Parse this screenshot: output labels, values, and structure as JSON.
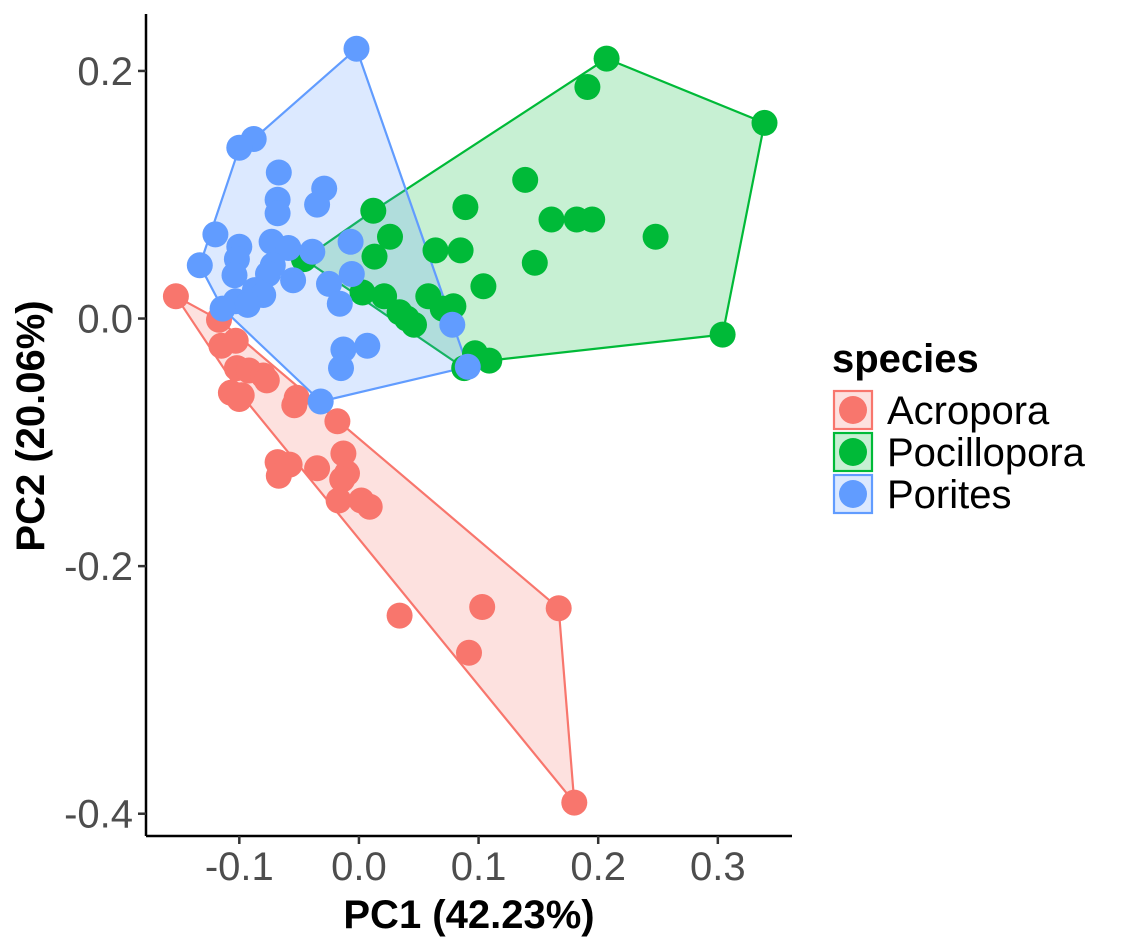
{
  "chart_data": {
    "type": "scatter",
    "title": "",
    "xlabel": "PC1 (42.23%)",
    "ylabel": "PC2 (20.06%)",
    "xlim": [
      -0.178,
      0.362
    ],
    "ylim": [
      -0.418,
      0.246
    ],
    "x_ticks": [
      -0.1,
      0.0,
      0.1,
      0.2,
      0.3
    ],
    "x_tick_labels": [
      "-0.1",
      "0.0",
      "0.1",
      "0.2",
      "0.3"
    ],
    "y_ticks": [
      -0.4,
      -0.2,
      0.0,
      0.2
    ],
    "y_tick_labels": [
      "-0.4",
      "-0.2",
      "0.0",
      "0.2"
    ],
    "grid": false,
    "hulls": true,
    "legend": {
      "title": "species",
      "position": "right",
      "entries": [
        "Acropora",
        "Pocillopora",
        "Porites"
      ]
    },
    "series": [
      {
        "name": "Acropora",
        "color": "#F8766D",
        "points": [
          [
            -0.153,
            0.018
          ],
          [
            -0.117,
            -0.001
          ],
          [
            -0.115,
            -0.022
          ],
          [
            -0.103,
            -0.018
          ],
          [
            -0.102,
            -0.04
          ],
          [
            -0.092,
            -0.042
          ],
          [
            -0.08,
            -0.046
          ],
          [
            -0.077,
            -0.05
          ],
          [
            -0.107,
            -0.06
          ],
          [
            -0.098,
            -0.062
          ],
          [
            -0.1,
            -0.065
          ],
          [
            -0.052,
            -0.064
          ],
          [
            -0.054,
            -0.07
          ],
          [
            -0.018,
            -0.083
          ],
          [
            -0.068,
            -0.116
          ],
          [
            -0.058,
            -0.118
          ],
          [
            -0.067,
            -0.127
          ],
          [
            -0.035,
            -0.121
          ],
          [
            -0.013,
            -0.109
          ],
          [
            -0.01,
            -0.125
          ],
          [
            -0.014,
            -0.13
          ],
          [
            -0.017,
            -0.147
          ],
          [
            0.002,
            -0.147
          ],
          [
            0.009,
            -0.152
          ],
          [
            0.034,
            -0.24
          ],
          [
            0.103,
            -0.233
          ],
          [
            0.167,
            -0.234
          ],
          [
            0.092,
            -0.27
          ],
          [
            0.18,
            -0.391
          ]
        ]
      },
      {
        "name": "Pocillopora",
        "color": "#00BA38",
        "points": [
          [
            0.207,
            0.21
          ],
          [
            0.191,
            0.187
          ],
          [
            0.339,
            0.158
          ],
          [
            0.139,
            0.112
          ],
          [
            0.089,
            0.09
          ],
          [
            0.161,
            0.08
          ],
          [
            0.182,
            0.08
          ],
          [
            0.195,
            0.08
          ],
          [
            0.248,
            0.066
          ],
          [
            0.012,
            0.087
          ],
          [
            0.026,
            0.066
          ],
          [
            0.064,
            0.055
          ],
          [
            0.085,
            0.055
          ],
          [
            0.147,
            0.045
          ],
          [
            0.013,
            0.05
          ],
          [
            -0.046,
            0.048
          ],
          [
            0.104,
            0.026
          ],
          [
            0.021,
            0.018
          ],
          [
            0.058,
            0.018
          ],
          [
            0.003,
            0.021
          ],
          [
            0.034,
            0.005
          ],
          [
            0.04,
            0.0
          ],
          [
            0.046,
            -0.005
          ],
          [
            0.07,
            0.008
          ],
          [
            0.079,
            0.01
          ],
          [
            0.097,
            -0.028
          ],
          [
            0.109,
            -0.034
          ],
          [
            0.088,
            -0.04
          ],
          [
            0.304,
            -0.013
          ]
        ]
      },
      {
        "name": "Porites",
        "color": "#619CFF",
        "points": [
          [
            -0.002,
            0.218
          ],
          [
            -0.088,
            0.145
          ],
          [
            -0.1,
            0.138
          ],
          [
            -0.067,
            0.118
          ],
          [
            -0.029,
            0.105
          ],
          [
            -0.068,
            0.096
          ],
          [
            -0.035,
            0.092
          ],
          [
            -0.068,
            0.085
          ],
          [
            -0.12,
            0.068
          ],
          [
            -0.1,
            0.058
          ],
          [
            -0.073,
            0.062
          ],
          [
            -0.059,
            0.057
          ],
          [
            -0.039,
            0.054
          ],
          [
            -0.007,
            0.062
          ],
          [
            -0.102,
            0.048
          ],
          [
            -0.133,
            0.043
          ],
          [
            -0.072,
            0.043
          ],
          [
            -0.076,
            0.036
          ],
          [
            -0.104,
            0.035
          ],
          [
            -0.006,
            0.036
          ],
          [
            -0.055,
            0.031
          ],
          [
            -0.087,
            0.023
          ],
          [
            -0.025,
            0.028
          ],
          [
            -0.08,
            0.019
          ],
          [
            -0.103,
            0.014
          ],
          [
            -0.093,
            0.011
          ],
          [
            -0.114,
            0.008
          ],
          [
            -0.016,
            0.012
          ],
          [
            0.078,
            -0.005
          ],
          [
            -0.013,
            -0.025
          ],
          [
            0.007,
            -0.022
          ],
          [
            -0.015,
            -0.04
          ],
          [
            0.091,
            -0.039
          ],
          [
            -0.032,
            -0.067
          ]
        ]
      }
    ],
    "hull_vertices": [
      [
        [
          -0.153,
          0.018
        ],
        [
          -0.117,
          -0.001
        ],
        [
          0.167,
          -0.234
        ],
        [
          0.18,
          -0.391
        ],
        [
          -0.098,
          -0.062
        ]
      ],
      [
        [
          0.207,
          0.21
        ],
        [
          0.339,
          0.158
        ],
        [
          0.304,
          -0.013
        ],
        [
          0.109,
          -0.034
        ],
        [
          0.088,
          -0.04
        ],
        [
          -0.046,
          0.048
        ],
        [
          0.012,
          0.087
        ]
      ],
      [
        [
          -0.002,
          0.218
        ],
        [
          0.091,
          -0.039
        ],
        [
          -0.032,
          -0.067
        ],
        [
          -0.114,
          0.008
        ],
        [
          -0.133,
          0.043
        ],
        [
          -0.1,
          0.138
        ],
        [
          -0.088,
          0.145
        ]
      ]
    ]
  }
}
